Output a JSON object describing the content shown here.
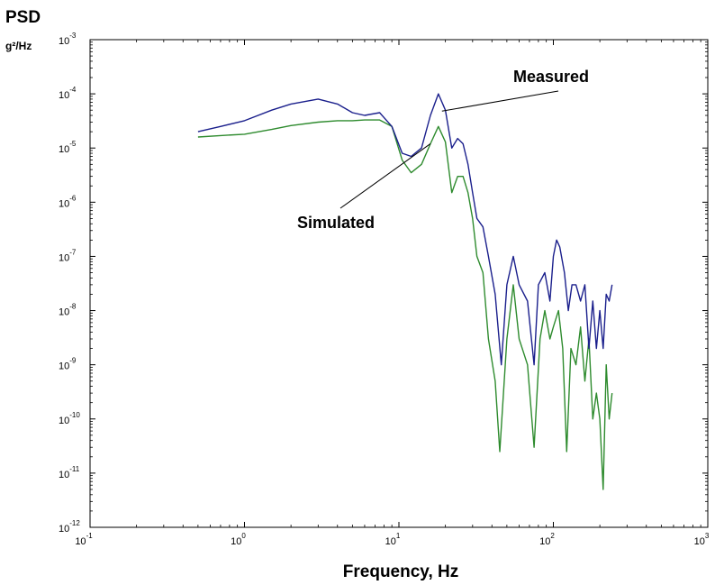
{
  "chart_data": {
    "type": "line",
    "title": "PSD",
    "ylabel": "g²/Hz",
    "xlabel": "Frequency, Hz",
    "x_scale": "log",
    "y_scale": "log",
    "xlim": [
      0.1,
      1000
    ],
    "ylim": [
      1e-12,
      0.001
    ],
    "grid": false,
    "legend": "none",
    "x_ticks": [
      {
        "base": "10",
        "exp": "-1",
        "value": 0.1
      },
      {
        "base": "10",
        "exp": "0",
        "value": 1
      },
      {
        "base": "10",
        "exp": "1",
        "value": 10
      },
      {
        "base": "10",
        "exp": "2",
        "value": 100
      },
      {
        "base": "10",
        "exp": "3",
        "value": 1000
      }
    ],
    "y_ticks": [
      {
        "base": "10",
        "exp": "-3",
        "value": 0.001
      },
      {
        "base": "10",
        "exp": "-4",
        "value": 0.0001
      },
      {
        "base": "10",
        "exp": "-5",
        "value": 1e-05
      },
      {
        "base": "10",
        "exp": "-6",
        "value": 1e-06
      },
      {
        "base": "10",
        "exp": "-7",
        "value": 1e-07
      },
      {
        "base": "10",
        "exp": "-8",
        "value": 1e-08
      },
      {
        "base": "10",
        "exp": "-9",
        "value": 1e-09
      },
      {
        "base": "10",
        "exp": "-10",
        "value": 1e-10
      },
      {
        "base": "10",
        "exp": "-11",
        "value": 1e-11
      },
      {
        "base": "10",
        "exp": "-12",
        "value": 1e-12
      }
    ],
    "series": [
      {
        "name": "Measured",
        "color": "#1a1f8c",
        "points": [
          [
            0.5,
            2e-05
          ],
          [
            0.7,
            2.5e-05
          ],
          [
            1.0,
            3.2e-05
          ],
          [
            1.5,
            5e-05
          ],
          [
            2.0,
            6.5e-05
          ],
          [
            3.0,
            8e-05
          ],
          [
            4.0,
            6.5e-05
          ],
          [
            5.0,
            4.5e-05
          ],
          [
            6.0,
            4e-05
          ],
          [
            7.5,
            4.5e-05
          ],
          [
            9.0,
            2.5e-05
          ],
          [
            10.5,
            8e-06
          ],
          [
            12.0,
            7e-06
          ],
          [
            14.0,
            1e-05
          ],
          [
            16.0,
            4e-05
          ],
          [
            18.0,
            0.0001
          ],
          [
            20.0,
            5e-05
          ],
          [
            22.0,
            1e-05
          ],
          [
            24.0,
            1.5e-05
          ],
          [
            26.0,
            1.2e-05
          ],
          [
            28.0,
            5e-06
          ],
          [
            30.0,
            1.5e-06
          ],
          [
            32.0,
            5e-07
          ],
          [
            35.0,
            3.5e-07
          ],
          [
            38.0,
            1e-07
          ],
          [
            42.0,
            2e-08
          ],
          [
            46.0,
            1e-09
          ],
          [
            50.0,
            3e-08
          ],
          [
            55.0,
            1e-07
          ],
          [
            60.0,
            3e-08
          ],
          [
            68.0,
            1.5e-08
          ],
          [
            75.0,
            1e-09
          ],
          [
            80.0,
            3e-08
          ],
          [
            88.0,
            5e-08
          ],
          [
            95.0,
            1.5e-08
          ],
          [
            100.0,
            1e-07
          ],
          [
            105.0,
            2e-07
          ],
          [
            110.0,
            1.5e-07
          ],
          [
            118.0,
            5e-08
          ],
          [
            125.0,
            1e-08
          ],
          [
            132.0,
            3e-08
          ],
          [
            140.0,
            3e-08
          ],
          [
            150.0,
            1.5e-08
          ],
          [
            160.0,
            3e-08
          ],
          [
            170.0,
            2e-09
          ],
          [
            180.0,
            1.5e-08
          ],
          [
            190.0,
            2e-09
          ],
          [
            200.0,
            1e-08
          ],
          [
            210.0,
            2e-09
          ],
          [
            220.0,
            2e-08
          ],
          [
            230.0,
            1.5e-08
          ],
          [
            240.0,
            3e-08
          ]
        ]
      },
      {
        "name": "Simulated",
        "color": "#2e8b2e",
        "points": [
          [
            0.5,
            1.6e-05
          ],
          [
            0.7,
            1.7e-05
          ],
          [
            1.0,
            1.8e-05
          ],
          [
            1.5,
            2.2e-05
          ],
          [
            2.0,
            2.6e-05
          ],
          [
            3.0,
            3e-05
          ],
          [
            4.0,
            3.2e-05
          ],
          [
            5.0,
            3.2e-05
          ],
          [
            6.0,
            3.3e-05
          ],
          [
            7.5,
            3.3e-05
          ],
          [
            9.0,
            2.5e-05
          ],
          [
            10.5,
            6e-06
          ],
          [
            12.0,
            3.5e-06
          ],
          [
            14.0,
            5e-06
          ],
          [
            16.0,
            1.2e-05
          ],
          [
            18.0,
            2.5e-05
          ],
          [
            20.0,
            1.3e-05
          ],
          [
            22.0,
            1.5e-06
          ],
          [
            24.0,
            3e-06
          ],
          [
            26.0,
            3e-06
          ],
          [
            28.0,
            1.5e-06
          ],
          [
            30.0,
            5e-07
          ],
          [
            32.0,
            1e-07
          ],
          [
            35.0,
            5e-08
          ],
          [
            38.0,
            3e-09
          ],
          [
            42.0,
            5e-10
          ],
          [
            45.0,
            2.5e-11
          ],
          [
            50.0,
            3e-09
          ],
          [
            55.0,
            3e-08
          ],
          [
            60.0,
            3e-09
          ],
          [
            68.0,
            1e-09
          ],
          [
            75.0,
            3e-11
          ],
          [
            82.0,
            3e-09
          ],
          [
            88.0,
            1e-08
          ],
          [
            95.0,
            3e-09
          ],
          [
            100.0,
            5e-09
          ],
          [
            108.0,
            1e-08
          ],
          [
            115.0,
            2e-09
          ],
          [
            122.0,
            2.5e-11
          ],
          [
            130.0,
            2e-09
          ],
          [
            140.0,
            1e-09
          ],
          [
            150.0,
            5e-09
          ],
          [
            160.0,
            5e-10
          ],
          [
            170.0,
            3e-09
          ],
          [
            180.0,
            1e-10
          ],
          [
            190.0,
            3e-10
          ],
          [
            200.0,
            1e-10
          ],
          [
            210.0,
            5e-12
          ],
          [
            220.0,
            1e-09
          ],
          [
            230.0,
            1e-10
          ],
          [
            240.0,
            3e-10
          ]
        ]
      }
    ],
    "annotations": [
      {
        "text": "Measured",
        "series": "Measured",
        "point_x": 19,
        "point_y": 4.8e-05
      },
      {
        "text": "Simulated",
        "series": "Simulated",
        "point_x": 16,
        "point_y": 1.2e-05
      }
    ]
  }
}
